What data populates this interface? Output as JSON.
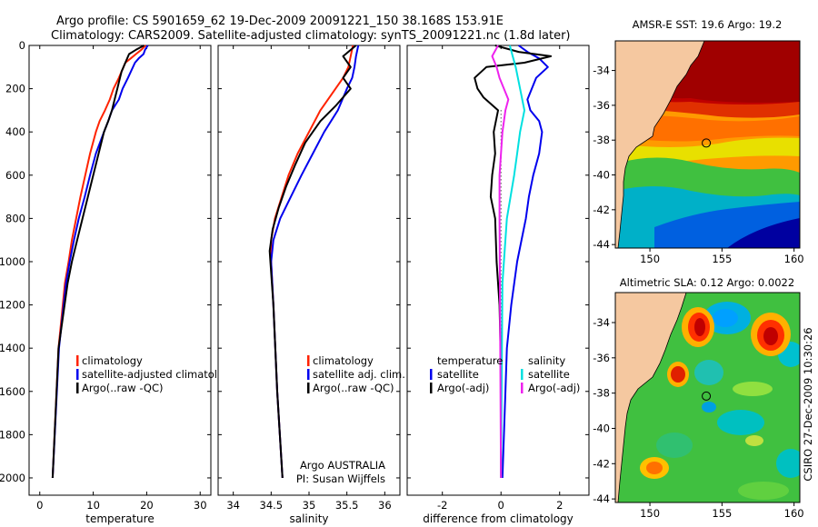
{
  "header": {
    "line1": "Argo profile: CS 5901659_62 19-Dec-2009 20091221_150 38.168S 153.91E",
    "line2": "Climatology: CARS2009. Satellite-adjusted climatology: synTS_20091221.nc (1.8d later)"
  },
  "colors": {
    "red": "#ff2200",
    "blue": "#0000ee",
    "black": "#000000",
    "cyan": "#00e0e0",
    "magenta": "#ee22ee",
    "land": "#f5c8a0"
  },
  "chart_data": [
    {
      "type": "line",
      "xlabel": "temperature",
      "xlim": [
        -2,
        32
      ],
      "xticks": [
        0,
        10,
        20,
        30
      ],
      "ylim": [
        0,
        2080
      ],
      "yticks": [
        0,
        200,
        400,
        600,
        800,
        1000,
        1200,
        1400,
        1600,
        1800,
        2000
      ],
      "legend": [
        "climatology",
        "satellite-adjusted climatology",
        "Argo(..raw -QC)"
      ],
      "series": [
        {
          "name": "climatology",
          "color": "red",
          "x": [
            19.8,
            19,
            18,
            17,
            16,
            14.8,
            13.8,
            13.1,
            12.2,
            11.2,
            10.5,
            9.4,
            8.5,
            7.6,
            6.8,
            6,
            5.4,
            4.7,
            3.5,
            2.4
          ],
          "y": [
            0,
            20,
            40,
            60,
            80,
            150,
            200,
            250,
            300,
            350,
            400,
            500,
            600,
            700,
            800,
            900,
            1000,
            1100,
            1400,
            2000
          ]
        },
        {
          "name": "satellite-adjusted climatology",
          "color": "blue",
          "x": [
            20.2,
            19.7,
            19.4,
            18.5,
            17.8,
            16.5,
            15.5,
            14.8,
            13.5,
            12.8,
            12,
            10.5,
            9.4,
            8.4,
            7.3,
            6.4,
            5.6,
            4.9,
            3.6,
            2.4
          ],
          "y": [
            0,
            20,
            40,
            60,
            80,
            150,
            200,
            250,
            300,
            350,
            400,
            500,
            600,
            700,
            800,
            900,
            1000,
            1100,
            1400,
            2000
          ]
        },
        {
          "name": "Argo(..raw -QC)",
          "color": "black",
          "x": [
            19.5,
            18,
            16.7,
            16,
            15.3,
            15,
            14.5,
            14,
            13.5,
            12.8,
            12,
            11,
            10,
            9,
            8,
            7,
            6,
            5.2,
            3.5,
            2.4
          ],
          "y": [
            0,
            20,
            40,
            80,
            120,
            150,
            200,
            250,
            300,
            350,
            400,
            500,
            600,
            700,
            800,
            900,
            1000,
            1100,
            1400,
            2000
          ]
        }
      ]
    },
    {
      "type": "line",
      "xlabel": "salinity",
      "xlim": [
        33.8,
        36.2
      ],
      "xticks": [
        34,
        34.5,
        35,
        35.5,
        36
      ],
      "ylim": [
        0,
        2080
      ],
      "yticks": [
        0,
        200,
        400,
        600,
        800,
        1000,
        1200,
        1400,
        1600,
        1800,
        2000
      ],
      "legend": [
        "climatology",
        "satellite adj. clim.",
        "Argo(..raw -QC)"
      ],
      "annotation": [
        "Argo AUSTRALIA",
        "PI: Susan Wijffels"
      ],
      "series": [
        {
          "name": "climatology",
          "color": "red",
          "x": [
            35.58,
            35.55,
            35.52,
            35.45,
            35.35,
            35.15,
            35.0,
            34.85,
            34.73,
            34.64,
            34.55,
            34.5,
            34.5,
            34.53,
            34.58,
            34.65
          ],
          "y": [
            0,
            50,
            100,
            150,
            200,
            300,
            400,
            500,
            600,
            700,
            800,
            900,
            1000,
            1200,
            1600,
            2000
          ]
        },
        {
          "name": "satellite adj. clim.",
          "color": "blue",
          "x": [
            35.65,
            35.62,
            35.6,
            35.57,
            35.5,
            35.38,
            35.2,
            35.05,
            34.9,
            34.76,
            34.62,
            34.53,
            34.5,
            34.53,
            34.58,
            34.65
          ],
          "y": [
            0,
            50,
            100,
            150,
            200,
            300,
            400,
            500,
            600,
            700,
            800,
            900,
            1000,
            1200,
            1600,
            2000
          ]
        },
        {
          "name": "Argo(..raw -QC)",
          "color": "black",
          "x": [
            35.62,
            35.45,
            35.55,
            35.45,
            35.55,
            35.35,
            35.15,
            34.95,
            34.82,
            34.7,
            34.6,
            34.52,
            34.48,
            34.49,
            34.53,
            34.58,
            34.65
          ],
          "y": [
            0,
            50,
            100,
            150,
            200,
            280,
            350,
            450,
            550,
            650,
            750,
            850,
            950,
            1000,
            1200,
            1600,
            2000
          ]
        }
      ]
    },
    {
      "type": "line",
      "xlabel": "difference from climatology",
      "xlim": [
        -3.2,
        3.0
      ],
      "xticks": [
        -2,
        0,
        2
      ],
      "ylim": [
        0,
        2080
      ],
      "yticks": [
        0,
        200,
        400,
        600,
        800,
        1000,
        1200,
        1400,
        1600,
        1800,
        2000
      ],
      "legend_temperature": [
        "temperature",
        "satellite",
        "Argo(-adj)"
      ],
      "legend_salinity": [
        "salinity",
        "satellite",
        "Argo(-adj)"
      ],
      "series": [
        {
          "name": "temperature satellite",
          "color": "blue",
          "x": [
            0.6,
            0.9,
            1.3,
            1.6,
            1.2,
            0.9,
            1.0,
            1.3,
            1.4,
            1.3,
            1.1,
            0.95,
            0.85,
            0.55,
            0.35,
            0.2,
            0.15,
            0.05
          ],
          "y": [
            0,
            30,
            60,
            100,
            150,
            250,
            300,
            350,
            400,
            500,
            600,
            700,
            800,
            1000,
            1200,
            1400,
            1600,
            2000
          ]
        },
        {
          "name": "temperature Argo(-adj)",
          "color": "black",
          "x": [
            -0.2,
            0.6,
            1.7,
            0.8,
            -0.5,
            -0.9,
            -0.8,
            -0.6,
            -0.1,
            -0.25,
            -0.2,
            -0.3,
            -0.35,
            -0.2,
            -0.15,
            -0.05,
            0.0,
            0.0
          ],
          "y": [
            0,
            30,
            50,
            80,
            100,
            150,
            200,
            240,
            300,
            400,
            500,
            600,
            700,
            800,
            1000,
            1200,
            1500,
            2000
          ]
        },
        {
          "name": "salinity satellite",
          "color": "cyan",
          "x": [
            0.3,
            0.4,
            0.5,
            0.65,
            0.8,
            0.65,
            0.55,
            0.45,
            0.2,
            0.05,
            0.0
          ],
          "y": [
            0,
            50,
            100,
            200,
            300,
            400,
            500,
            600,
            800,
            1100,
            2000
          ]
        },
        {
          "name": "salinity Argo(-adj)",
          "color": "magenta",
          "x": [
            -0.1,
            -0.3,
            -0.15,
            -0.05,
            0.25,
            0.15,
            0.05,
            -0.05,
            -0.05,
            0.0
          ],
          "y": [
            0,
            50,
            100,
            150,
            250,
            300,
            400,
            600,
            800,
            2000
          ]
        }
      ]
    },
    {
      "type": "heatmap",
      "title": "AMSR-E SST: 19.6 Argo: 19.2",
      "xlim": [
        147.6,
        160.4
      ],
      "xticks": [
        150,
        155,
        160
      ],
      "ylim": [
        -44.2,
        -32.3
      ],
      "yticks": [
        -34,
        -36,
        -38,
        -40,
        -42,
        -44
      ],
      "marker": {
        "lon": 153.91,
        "lat": -38.168
      }
    },
    {
      "type": "heatmap",
      "title": "Altimetric SLA: 0.12 Argo: 0.0022",
      "xlim": [
        147.6,
        160.4
      ],
      "xticks": [
        150,
        155,
        160
      ],
      "ylim": [
        -44.2,
        -32.3
      ],
      "yticks": [
        -34,
        -36,
        -38,
        -40,
        -42,
        -44
      ],
      "marker": {
        "lon": 153.91,
        "lat": -38.168
      },
      "side_label": "CSIRO 27-Dec-2009 10:30:26"
    }
  ]
}
